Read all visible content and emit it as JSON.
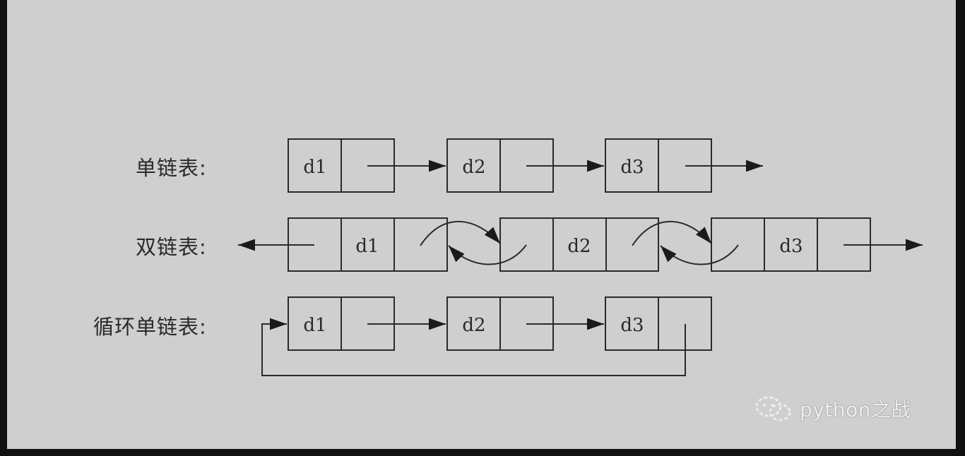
{
  "labels": {
    "singly_linked": "单链表:",
    "doubly_linked": "双链表:",
    "circular_linked": "循环单链表:"
  },
  "singly_nodes": [
    "d1",
    "d2",
    "d3"
  ],
  "doubly_nodes": [
    "d1",
    "d2",
    "d3"
  ],
  "circular_nodes": [
    "d1",
    "d2",
    "d3"
  ],
  "watermark": {
    "icon": "wechat-icon",
    "text": "python之战"
  },
  "colors": {
    "background": "#cfcfcf",
    "line": "#2a2a2a",
    "frame": "#111111"
  }
}
